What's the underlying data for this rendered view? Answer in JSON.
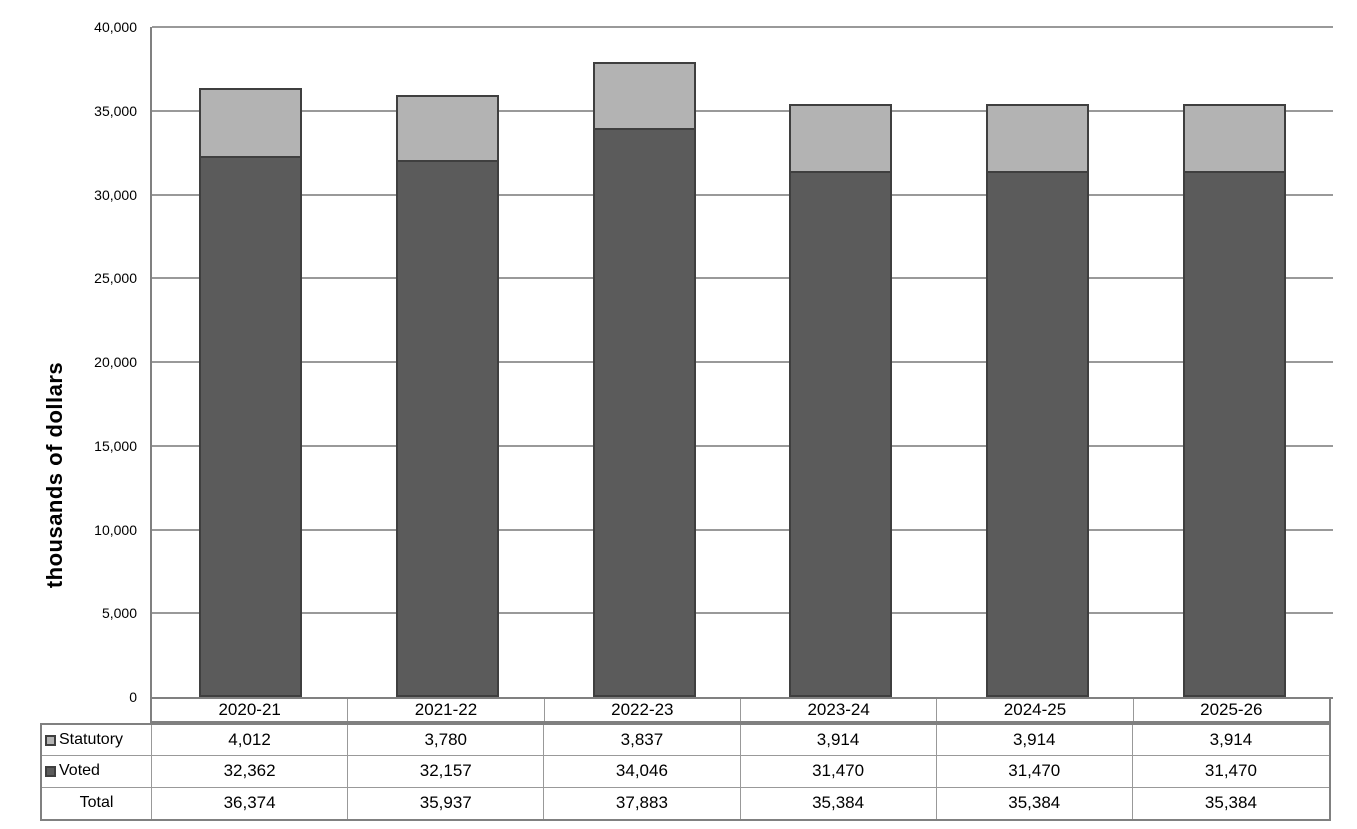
{
  "y_axis": {
    "title": "thousands of dollars",
    "ticks": [
      "40,000",
      "35,000",
      "30,000",
      "25,000",
      "20,000",
      "15,000",
      "10,000",
      "5,000",
      "0"
    ]
  },
  "chart_data": {
    "type": "bar",
    "stacked": true,
    "categories": [
      "2020-21",
      "2021-22",
      "2022-23",
      "2023-24",
      "2024-25",
      "2025-26"
    ],
    "series": [
      {
        "name": "Voted",
        "color": "#5b5b5b",
        "values": [
          32362,
          32157,
          34046,
          31470,
          31470,
          31470
        ]
      },
      {
        "name": "Statutory",
        "color": "#b3b3b3",
        "values": [
          4012,
          3780,
          3837,
          3914,
          3914,
          3914
        ]
      }
    ],
    "totals": [
      36374,
      35937,
      37883,
      35384,
      35384,
      35384
    ],
    "title": "",
    "xlabel": "",
    "ylabel": "thousands of dollars",
    "ylim": [
      0,
      40000
    ],
    "tick_step": 5000,
    "gridlines": true,
    "legend_position": "data-table-left"
  },
  "table": {
    "header": [
      "2020-21",
      "2021-22",
      "2022-23",
      "2023-24",
      "2024-25",
      "2025-26"
    ],
    "rows": [
      {
        "label": "Statutory",
        "marker": "statutory_fill",
        "values": [
          "4,012",
          "3,780",
          "3,837",
          "3,914",
          "3,914",
          "3,914"
        ]
      },
      {
        "label": "Voted",
        "marker": "voted_fill",
        "values": [
          "32,362",
          "32,157",
          "34,046",
          "31,470",
          "31,470",
          "31,470"
        ]
      },
      {
        "label": "Total",
        "marker": null,
        "values": [
          "36,374",
          "35,937",
          "37,883",
          "35,384",
          "35,384",
          "35,384"
        ]
      }
    ]
  },
  "colors": {
    "statutory_fill": "#b3b3b3",
    "voted_fill": "#5b5b5b",
    "bar_border": "#3f3f3f",
    "gridline": "#999999",
    "axis_line": "#808080",
    "table_outer_border": "#808080",
    "table_inner_border": "#999999"
  }
}
